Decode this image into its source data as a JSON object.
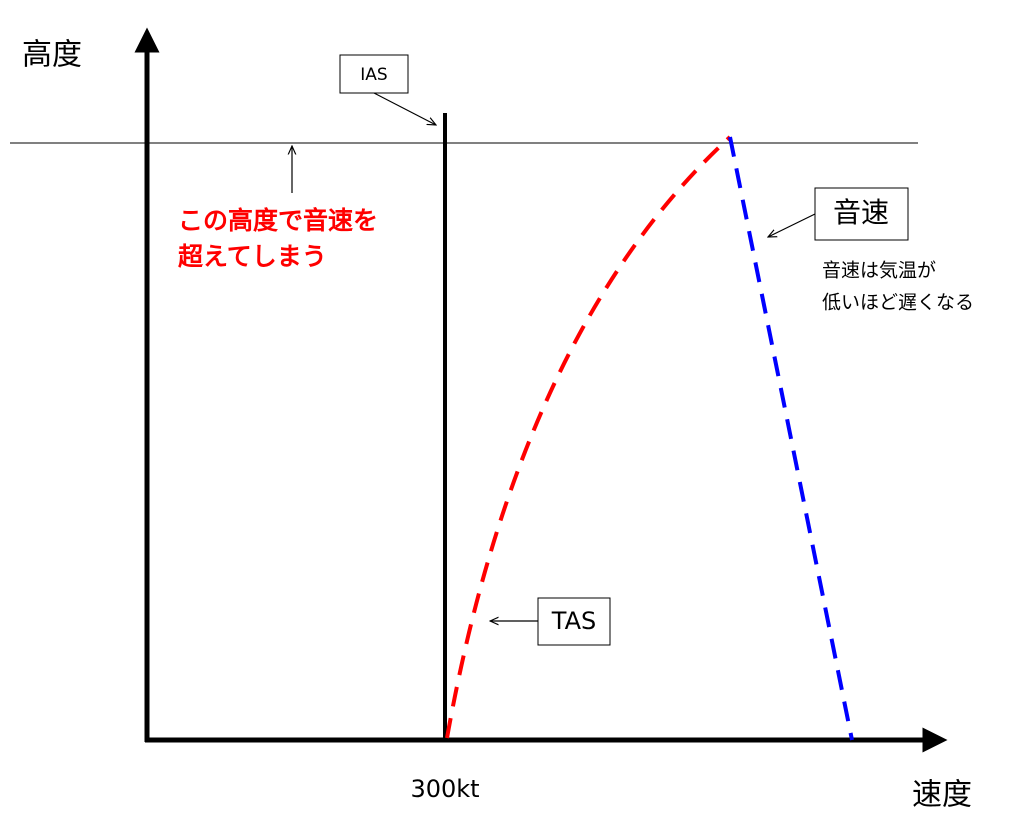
{
  "axes": {
    "y_label": "高度",
    "x_label": "速度",
    "x_marker": "300kt"
  },
  "labels": {
    "ias": "IAS",
    "tas": "TAS",
    "sound": "音速"
  },
  "annotations": {
    "exceed": [
      "この高度で音速を",
      "超えてしまう"
    ],
    "sound_note": [
      "音速は気温が",
      "低いほど遅くなる"
    ]
  }
}
